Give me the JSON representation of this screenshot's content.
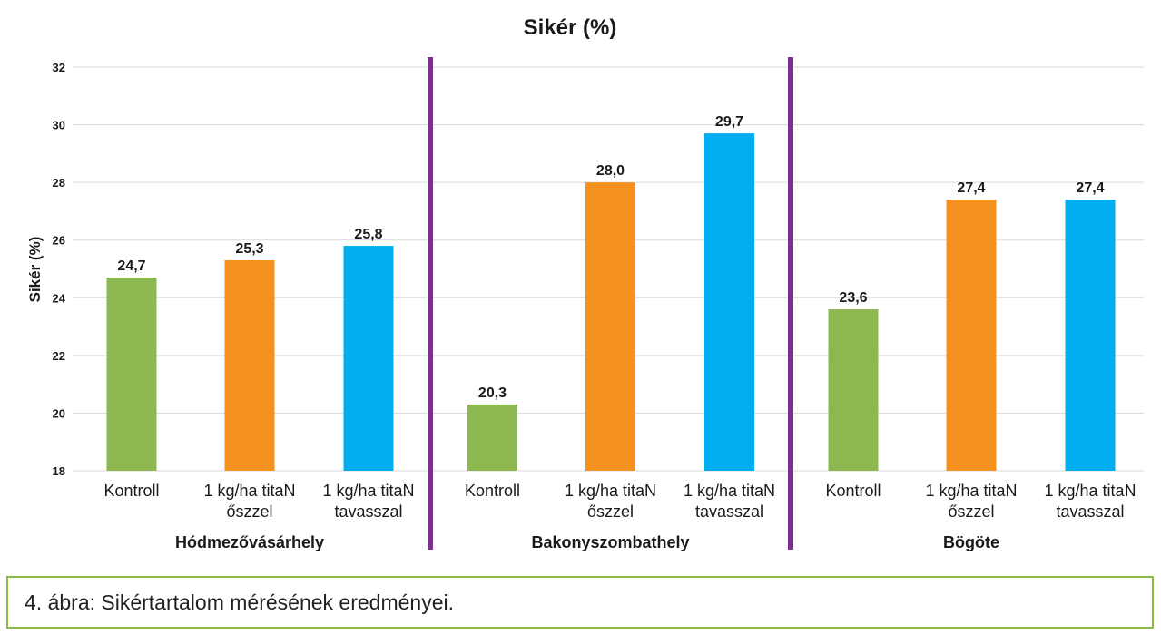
{
  "chart_data": {
    "type": "bar",
    "title": "Sikér (%)",
    "ylabel": "Sikér (%)",
    "xlabel": "",
    "ylim": [
      18,
      32
    ],
    "yticks": [
      18,
      20,
      22,
      24,
      26,
      28,
      30,
      32
    ],
    "grid": true,
    "legend": "none",
    "colors": {
      "Kontroll": "#8cb84f",
      "osszel": "#f5921f",
      "tavasszal": "#00aeef",
      "divider": "#7b2f8e",
      "grid": "#d9d9d9"
    },
    "groups": [
      {
        "name": "Hódmezővásárhely",
        "bars": [
          {
            "label": [
              "Kontroll"
            ],
            "value": 24.7,
            "value_label": "24,7",
            "color_key": "Kontroll"
          },
          {
            "label": [
              "1 kg/ha titaN",
              "őszzel"
            ],
            "value": 25.3,
            "value_label": "25,3",
            "color_key": "osszel"
          },
          {
            "label": [
              "1 kg/ha titaN",
              "tavasszal"
            ],
            "value": 25.8,
            "value_label": "25,8",
            "color_key": "tavasszal"
          }
        ]
      },
      {
        "name": "Bakonyszombathely",
        "bars": [
          {
            "label": [
              "Kontroll"
            ],
            "value": 20.3,
            "value_label": "20,3",
            "color_key": "Kontroll"
          },
          {
            "label": [
              "1 kg/ha titaN",
              "őszzel"
            ],
            "value": 28.0,
            "value_label": "28,0",
            "color_key": "osszel"
          },
          {
            "label": [
              "1 kg/ha titaN",
              "tavasszal"
            ],
            "value": 29.7,
            "value_label": "29,7",
            "color_key": "tavasszal"
          }
        ]
      },
      {
        "name": "Bögöte",
        "bars": [
          {
            "label": [
              "Kontroll"
            ],
            "value": 23.6,
            "value_label": "23,6",
            "color_key": "Kontroll"
          },
          {
            "label": [
              "1 kg/ha titaN",
              "őszzel"
            ],
            "value": 27.4,
            "value_label": "27,4",
            "color_key": "osszel"
          },
          {
            "label": [
              "1 kg/ha titaN",
              "tavasszal"
            ],
            "value": 27.4,
            "value_label": "27,4",
            "color_key": "tavasszal"
          }
        ]
      }
    ]
  },
  "caption": "4. ábra: Sikértartalom mérésének eredményei."
}
